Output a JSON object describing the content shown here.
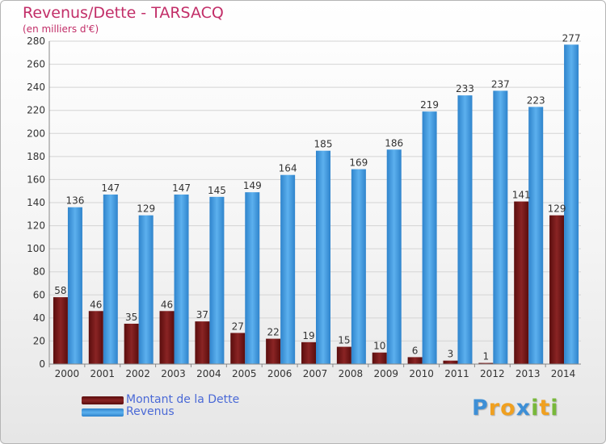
{
  "title": "Revenus/Dette - TARSACQ",
  "subtitle": "(en milliers d'€)",
  "colors": {
    "title": "#c22e68",
    "dette": "#7a1a1a",
    "revenus": "#3e94d8",
    "legend_text": "#4a69d6"
  },
  "legend": [
    {
      "label": "Montant de la Dette",
      "color": "#7a1a1a"
    },
    {
      "label": "Revenus",
      "color": "#3e94d8"
    }
  ],
  "logo": {
    "letters": [
      "P",
      "r",
      "o",
      "x",
      "i",
      "t",
      "i"
    ],
    "colors": [
      "#3d8fd6",
      "#f0a020",
      "#f0a020",
      "#3d8fd6",
      "#78b83a",
      "#f0a020",
      "#78b83a"
    ]
  },
  "chart_data": {
    "type": "bar",
    "categories": [
      "2000",
      "2001",
      "2002",
      "2003",
      "2004",
      "2005",
      "2006",
      "2007",
      "2008",
      "2009",
      "2010",
      "2011",
      "2012",
      "2013",
      "2014"
    ],
    "series": [
      {
        "name": "Montant de la Dette",
        "values": [
          58,
          46,
          35,
          46,
          37,
          27,
          22,
          19,
          15,
          10,
          6,
          3,
          1,
          141,
          129
        ]
      },
      {
        "name": "Revenus",
        "values": [
          136,
          147,
          129,
          147,
          145,
          149,
          164,
          185,
          169,
          186,
          219,
          233,
          237,
          223,
          277
        ]
      }
    ],
    "ylim": [
      0,
      280
    ],
    "yticks": [
      0,
      20,
      40,
      60,
      80,
      100,
      120,
      140,
      160,
      180,
      200,
      220,
      240,
      260,
      280
    ],
    "grid": true,
    "legend_position": "bottom-left"
  }
}
